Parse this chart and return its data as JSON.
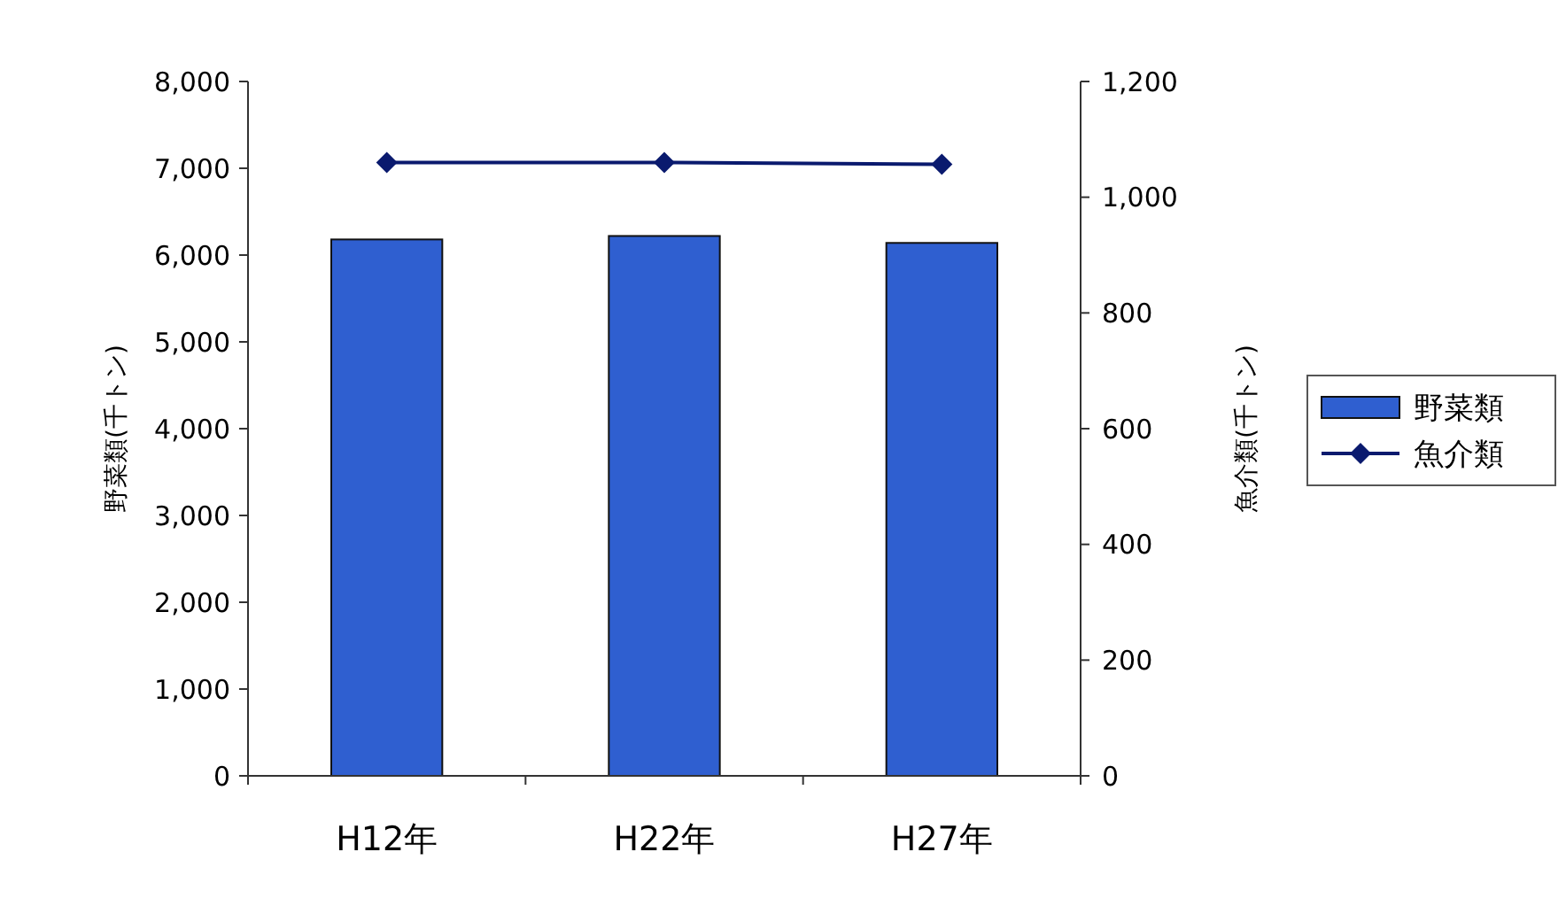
{
  "chart_data": {
    "type": "bar",
    "categories": [
      "H12年",
      "H22年",
      "H27年"
    ],
    "ylabel": "野菜類(千トン)",
    "y2label": "魚介類(千トン)",
    "series": [
      {
        "name": "野菜類",
        "color": "#2f5fd0",
        "values": [
          6180,
          6220,
          6140
        ]
      },
      {
        "name": "魚介類",
        "type": "line",
        "axis": "y2",
        "color": "#0a1a6e",
        "values": [
          1060,
          1060,
          1057
        ]
      }
    ],
    "ylim": [
      0,
      8000
    ],
    "yticks": [
      {
        "value": 0,
        "label": "0"
      },
      {
        "value": 1000,
        "label": "1,000"
      },
      {
        "value": 2000,
        "label": "2,000"
      },
      {
        "value": 3000,
        "label": "3,000"
      },
      {
        "value": 4000,
        "label": "4,000"
      },
      {
        "value": 5000,
        "label": "5,000"
      },
      {
        "value": 6000,
        "label": "6,000"
      },
      {
        "value": 7000,
        "label": "7,000"
      },
      {
        "value": 8000,
        "label": "8,000"
      }
    ],
    "y2lim": [
      0,
      1200
    ],
    "y2ticks": [
      {
        "value": 0,
        "label": "0"
      },
      {
        "value": 200,
        "label": "200"
      },
      {
        "value": 400,
        "label": "400"
      },
      {
        "value": 600,
        "label": "600"
      },
      {
        "value": 800,
        "label": "800"
      },
      {
        "value": 1000,
        "label": "1,000"
      },
      {
        "value": 1200,
        "label": "1,200"
      }
    ],
    "marker": "diamond",
    "legend": "right",
    "grid": false
  }
}
